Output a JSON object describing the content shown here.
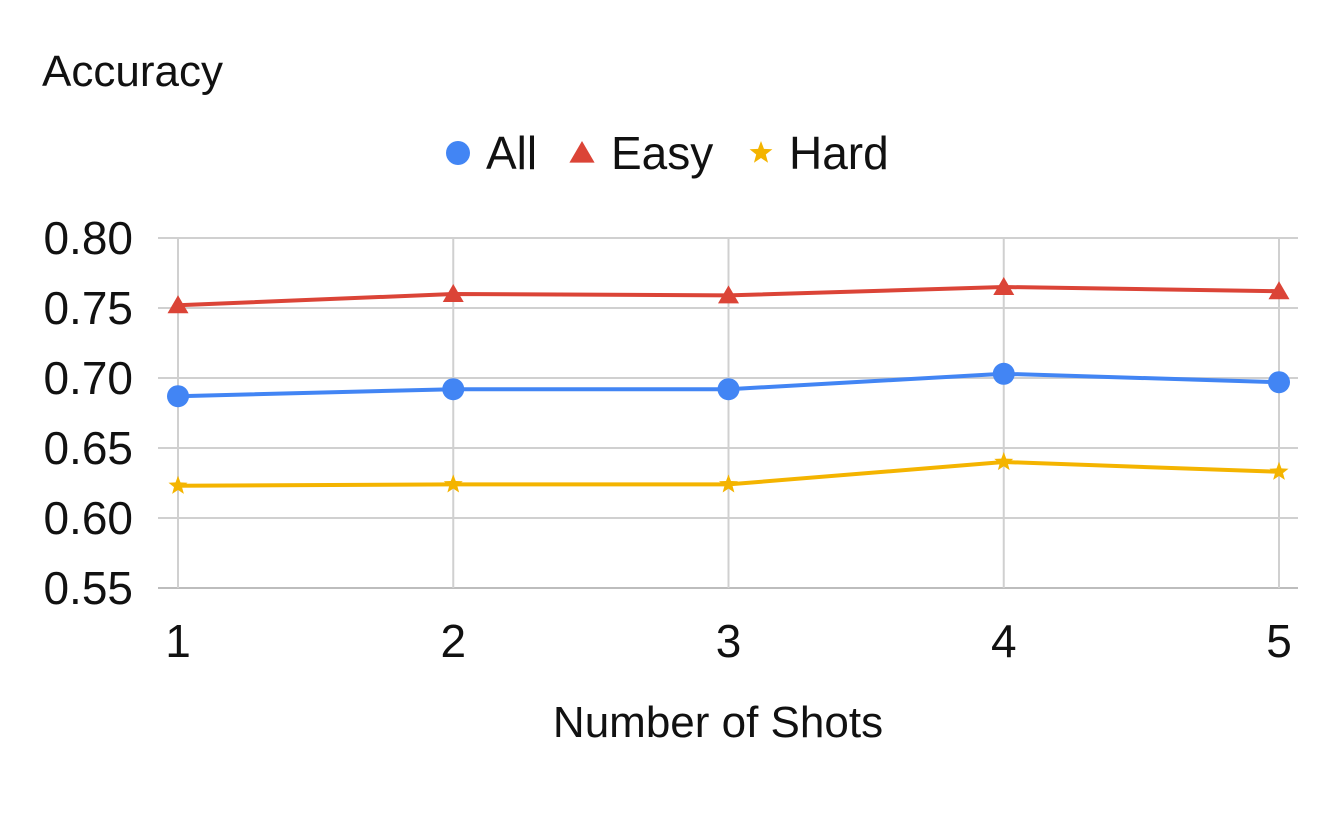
{
  "chart_data": {
    "type": "line",
    "title": "",
    "ylabel": "Accuracy",
    "xlabel": "Number of Shots",
    "x": [
      1,
      2,
      3,
      4,
      5
    ],
    "x_tick_labels": [
      "1",
      "2",
      "3",
      "4",
      "5"
    ],
    "ylim": [
      0.55,
      0.8
    ],
    "y_ticks": [
      0.55,
      0.6,
      0.65,
      0.7,
      0.75,
      0.8
    ],
    "y_tick_labels": [
      "0.55",
      "0.60",
      "0.65",
      "0.70",
      "0.75",
      "0.80"
    ],
    "grid": true,
    "legend_position": "top",
    "series": [
      {
        "name": "All",
        "values": [
          0.687,
          0.692,
          0.692,
          0.703,
          0.697
        ],
        "color": "#4285F4",
        "marker": "circle"
      },
      {
        "name": "Easy",
        "values": [
          0.752,
          0.76,
          0.759,
          0.765,
          0.762
        ],
        "color": "#DB4437",
        "marker": "triangle"
      },
      {
        "name": "Hard",
        "values": [
          0.623,
          0.624,
          0.624,
          0.64,
          0.633
        ],
        "color": "#F4B400",
        "marker": "star"
      }
    ]
  }
}
